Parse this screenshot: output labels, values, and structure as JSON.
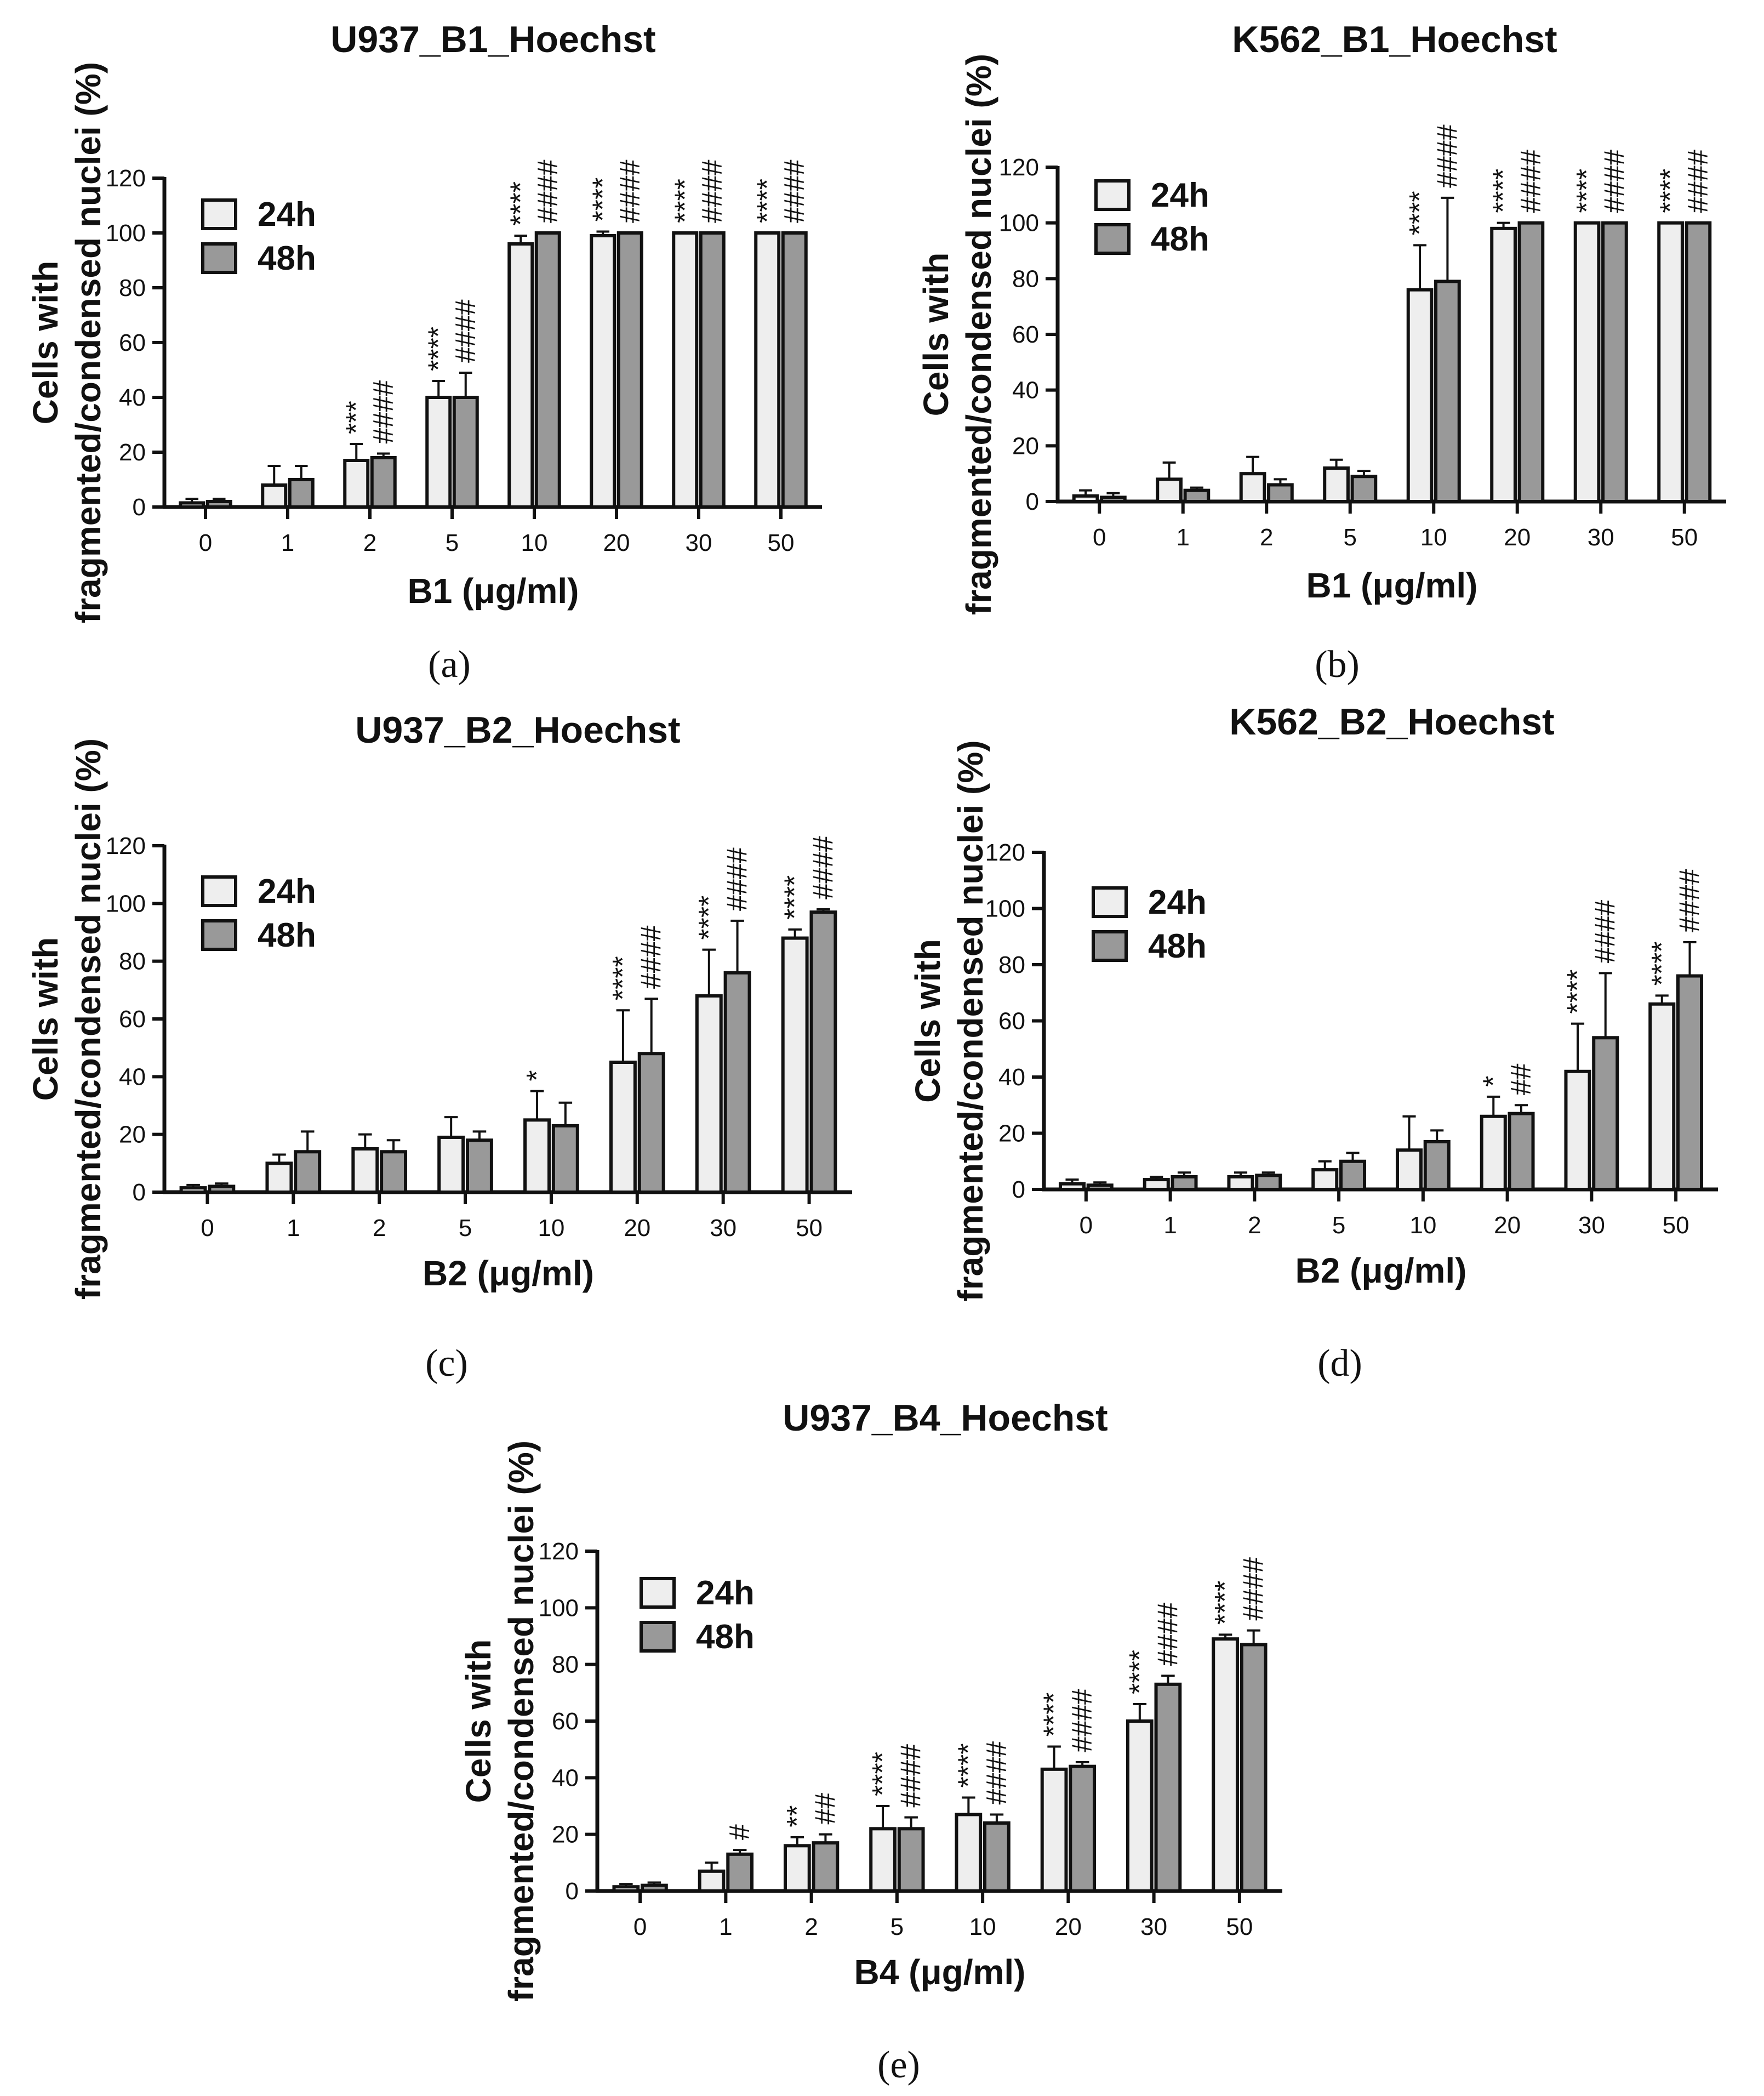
{
  "chart_data": [
    {
      "type": "bar",
      "panel_label": "(a)",
      "title": "U937_B1_Hoechst",
      "xlabel": "B1 (μg/ml)",
      "ylabel_lines": [
        "Cells with",
        "fragmented/condensed nuclei (%)"
      ],
      "ylim": [
        0,
        120
      ],
      "yticks": [
        "0",
        "20",
        "40",
        "60",
        "80",
        "100",
        "120"
      ],
      "categories": [
        "0",
        "1",
        "2",
        "5",
        "10",
        "20",
        "30",
        "50"
      ],
      "series": [
        {
          "name": "24h",
          "color": "#eeeeee",
          "values": [
            1.5,
            8,
            17,
            40,
            96,
            99,
            100,
            100
          ],
          "errors": [
            1.5,
            7,
            6,
            6,
            3,
            1.5,
            0,
            0
          ],
          "annotations": [
            "",
            "",
            "***",
            "****",
            "****",
            "****",
            "****",
            "****"
          ]
        },
        {
          "name": "48h",
          "color": "#999999",
          "values": [
            2,
            10,
            18,
            40,
            100,
            100,
            100,
            100
          ],
          "errors": [
            1,
            5,
            1.5,
            9,
            0,
            0,
            0,
            0
          ],
          "annotations": [
            "",
            "",
            "####",
            "####",
            "####",
            "####",
            "####",
            "####"
          ]
        }
      ]
    },
    {
      "type": "bar",
      "panel_label": "(b)",
      "title": "K562_B1_Hoechst",
      "xlabel": "B1 (μg/ml)",
      "ylabel_lines": [
        "Cells with",
        "fragmented/condensed nuclei (%)"
      ],
      "ylim": [
        0,
        120
      ],
      "yticks": [
        "0",
        "20",
        "40",
        "60",
        "80",
        "100",
        "120"
      ],
      "categories": [
        "0",
        "1",
        "2",
        "5",
        "10",
        "20",
        "30",
        "50"
      ],
      "series": [
        {
          "name": "24h",
          "color": "#eeeeee",
          "values": [
            2,
            8,
            10,
            12,
            76,
            98,
            100,
            100
          ],
          "errors": [
            2,
            6,
            6,
            3,
            16,
            2,
            0,
            0
          ],
          "annotations": [
            "",
            "",
            "",
            "",
            "****",
            "****",
            "****",
            "****"
          ]
        },
        {
          "name": "48h",
          "color": "#999999",
          "values": [
            1.5,
            4,
            6,
            9,
            79,
            100,
            100,
            100
          ],
          "errors": [
            1.5,
            1,
            2,
            2,
            30,
            0,
            0,
            0
          ],
          "annotations": [
            "",
            "",
            "",
            "",
            "####",
            "####",
            "####",
            "####"
          ]
        }
      ]
    },
    {
      "type": "bar",
      "panel_label": "(c)",
      "title": "U937_B2_Hoechst",
      "xlabel": "B2 (μg/ml)",
      "ylabel_lines": [
        "Cells with",
        "fragmented/condensed nuclei (%)"
      ],
      "ylim": [
        0,
        120
      ],
      "yticks": [
        "0",
        "20",
        "40",
        "60",
        "80",
        "100",
        "120"
      ],
      "categories": [
        "0",
        "1",
        "2",
        "5",
        "10",
        "20",
        "30",
        "50"
      ],
      "series": [
        {
          "name": "24h",
          "color": "#eeeeee",
          "values": [
            1.5,
            10,
            15,
            19,
            25,
            45,
            68,
            88
          ],
          "errors": [
            1,
            3,
            5,
            7,
            10,
            18,
            16,
            3
          ],
          "annotations": [
            "",
            "",
            "",
            "",
            "*",
            "****",
            "****",
            "****"
          ]
        },
        {
          "name": "48h",
          "color": "#999999",
          "values": [
            2,
            14,
            14,
            18,
            23,
            48,
            76,
            97
          ],
          "errors": [
            1,
            7,
            4,
            3,
            8,
            19,
            18,
            1
          ],
          "annotations": [
            "",
            "",
            "",
            "",
            "",
            "####",
            "####",
            "####"
          ]
        }
      ]
    },
    {
      "type": "bar",
      "panel_label": "(d)",
      "title": "K562_B2_Hoechst",
      "xlabel": "B2 (μg/ml)",
      "ylabel_lines": [
        "Cells with",
        "fragmented/condensed nuclei (%)"
      ],
      "ylim": [
        0,
        120
      ],
      "yticks": [
        "0",
        "20",
        "40",
        "60",
        "80",
        "100",
        "120"
      ],
      "categories": [
        "0",
        "1",
        "2",
        "5",
        "10",
        "20",
        "30",
        "50"
      ],
      "series": [
        {
          "name": "24h",
          "color": "#eeeeee",
          "values": [
            2,
            3.5,
            4.5,
            7,
            14,
            26,
            42,
            66
          ],
          "errors": [
            1.5,
            1,
            1.5,
            3,
            12,
            7,
            17,
            3
          ],
          "annotations": [
            "",
            "",
            "",
            "",
            "",
            "*",
            "****",
            "****"
          ]
        },
        {
          "name": "48h",
          "color": "#999999",
          "values": [
            1.5,
            4.5,
            5,
            10,
            17,
            27,
            54,
            76
          ],
          "errors": [
            1,
            1.5,
            1,
            3,
            4,
            3,
            23,
            12
          ],
          "annotations": [
            "",
            "",
            "",
            "",
            "",
            "##",
            "####",
            "####"
          ]
        }
      ]
    },
    {
      "type": "bar",
      "panel_label": "(e)",
      "title": "U937_B4_Hoechst",
      "xlabel": "B4 (μg/ml)",
      "ylabel_lines": [
        "Cells with",
        "fragmented/condensed nuclei (%)"
      ],
      "ylim": [
        0,
        120
      ],
      "yticks": [
        "0",
        "20",
        "40",
        "60",
        "80",
        "100",
        "120"
      ],
      "categories": [
        "0",
        "1",
        "2",
        "5",
        "10",
        "20",
        "30",
        "50"
      ],
      "series": [
        {
          "name": "24h",
          "color": "#eeeeee",
          "values": [
            1.5,
            7,
            16,
            22,
            27,
            43,
            60,
            89
          ],
          "errors": [
            1,
            3,
            3,
            8,
            6,
            8,
            6,
            1.5
          ],
          "annotations": [
            "",
            "",
            "**",
            "****",
            "****",
            "****",
            "****",
            "****"
          ]
        },
        {
          "name": "48h",
          "color": "#999999",
          "values": [
            2,
            13,
            17,
            22,
            24,
            44,
            73,
            87
          ],
          "errors": [
            1,
            1.5,
            3,
            4,
            3,
            1.5,
            3,
            5
          ],
          "annotations": [
            "",
            "#",
            "##",
            "####",
            "####",
            "####",
            "####",
            "####"
          ]
        }
      ]
    }
  ]
}
